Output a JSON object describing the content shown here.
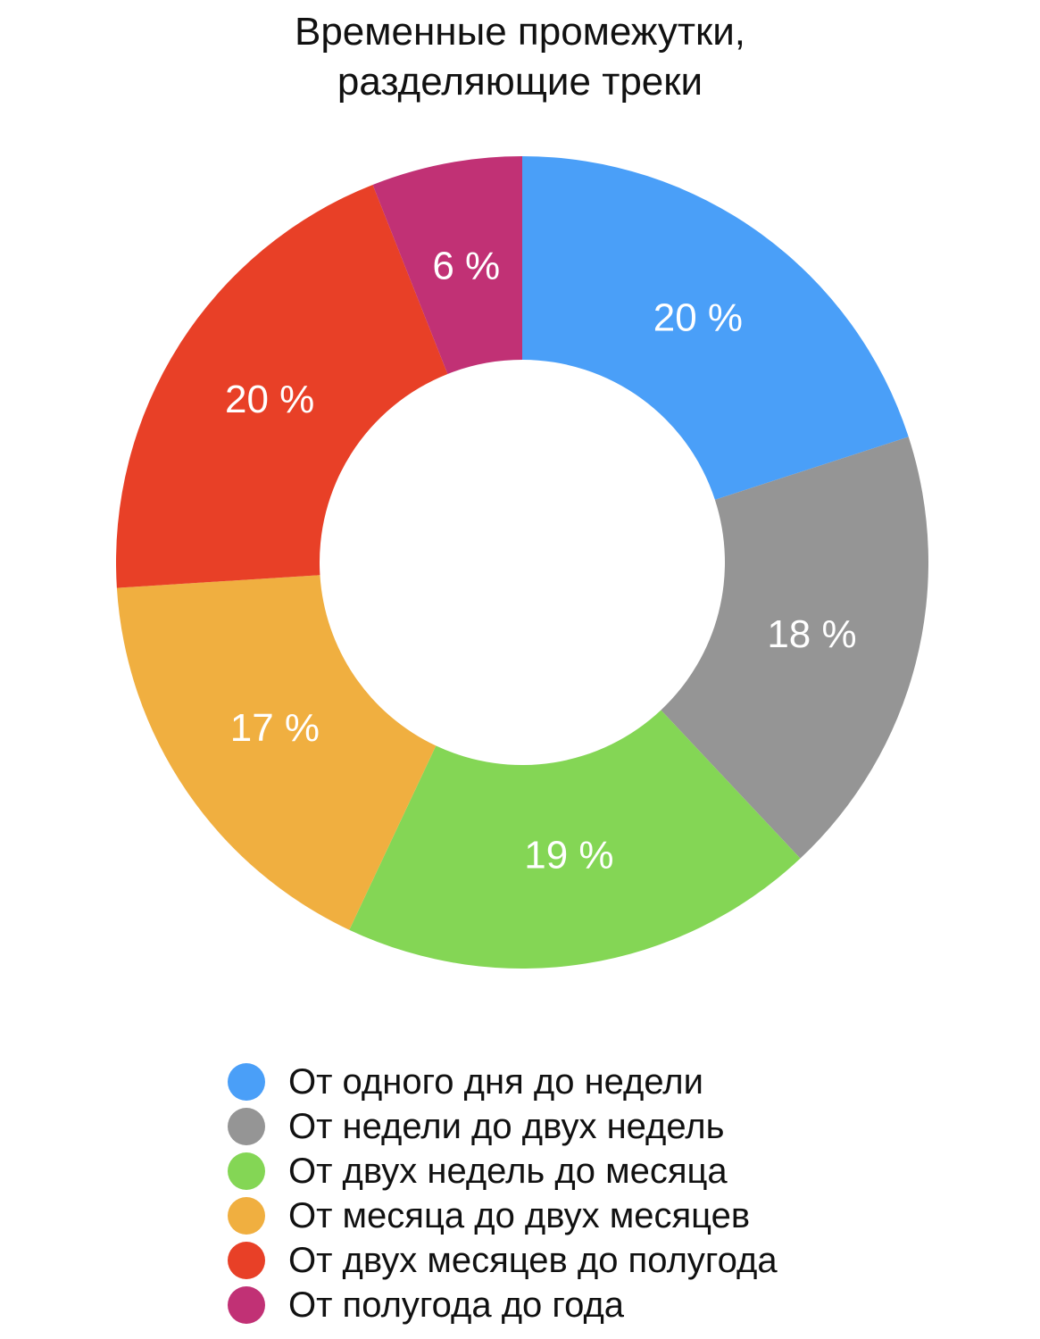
{
  "chart_data": {
    "type": "pie",
    "variant": "donut",
    "title_lines": [
      "Временные промежутки,",
      "разделяющие треки"
    ],
    "categories": [
      "От одного дня до недели",
      "От недели до двух недель",
      "От двух недель до месяца",
      "От месяца до двух месяцев",
      "От двух месяцев до полугода",
      "От полугода до года"
    ],
    "values": [
      20,
      18,
      19,
      17,
      20,
      6
    ],
    "value_labels": [
      "20 %",
      "18 %",
      "19 %",
      "17 %",
      "20 %",
      "6 %"
    ],
    "colors": [
      "#4A9FF8",
      "#959595",
      "#84D655",
      "#F0AF40",
      "#E84027",
      "#C13175"
    ],
    "start_direction": "top",
    "direction": "clockwise",
    "legend_position": "bottom"
  }
}
